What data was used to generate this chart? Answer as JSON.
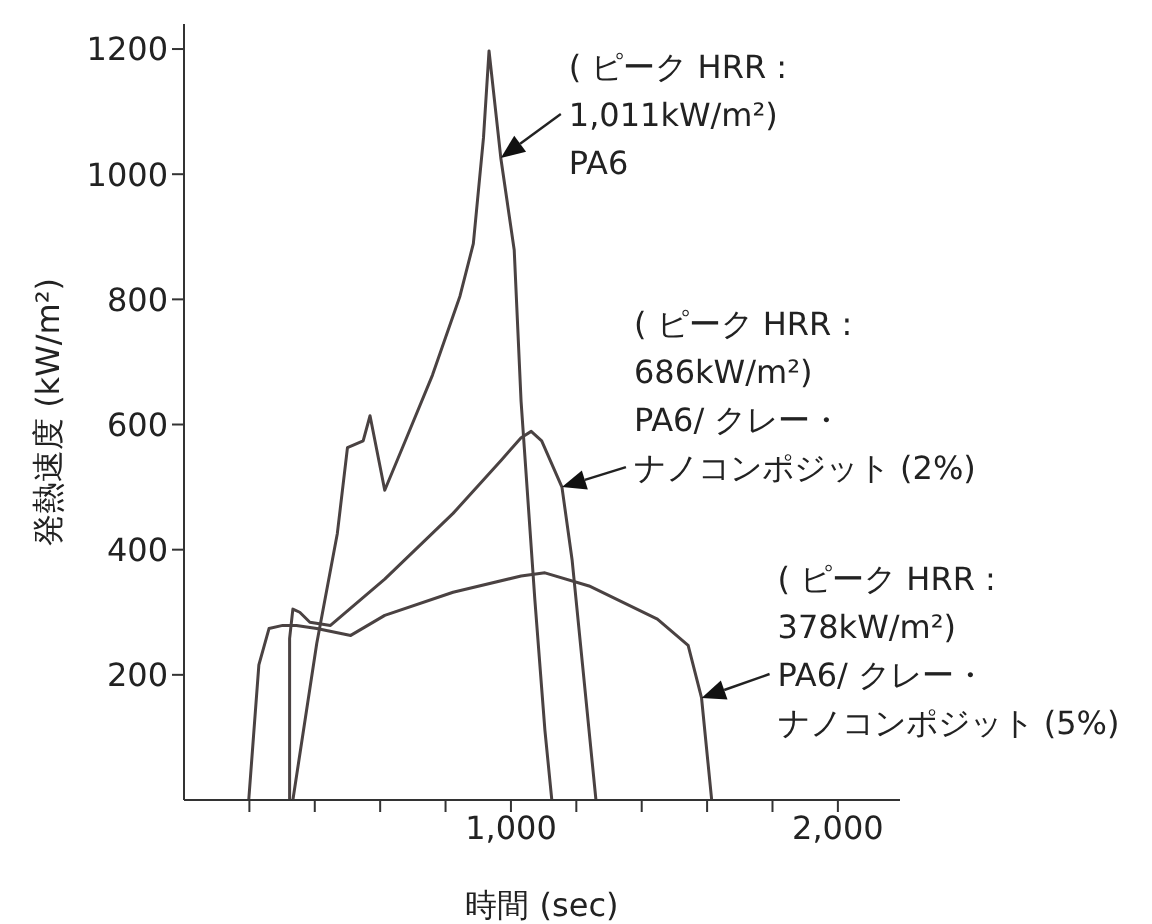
{
  "chart_data": {
    "type": "line",
    "xlabel": "時間 (sec)",
    "ylabel": "発熱速度 (kW/m²)",
    "xlim": [
      0,
      2190
    ],
    "ylim": [
      0,
      1240
    ],
    "xticks": [
      {
        "value": 200,
        "label": null
      },
      {
        "value": 400,
        "label": null
      },
      {
        "value": 600,
        "label": null
      },
      {
        "value": 800,
        "label": null
      },
      {
        "value": 1000,
        "label": "1,000"
      },
      {
        "value": 1200,
        "label": null
      },
      {
        "value": 1400,
        "label": null
      },
      {
        "value": 1600,
        "label": null
      },
      {
        "value": 1800,
        "label": null
      },
      {
        "value": 2000,
        "label": "2,000"
      }
    ],
    "yticks": [
      200,
      400,
      600,
      800,
      1000,
      1200
    ],
    "marker": "none",
    "series": [
      {
        "color": "#4a4242",
        "x": [
          333,
          406,
          469,
          500,
          548,
          569,
          614,
          677,
          760,
          844,
          885,
          916,
          933,
          969,
          1010,
          1031,
          1073,
          1104,
          1125
        ],
        "values": [
          0,
          250,
          426,
          563,
          574,
          614,
          495,
          574,
          679,
          805,
          889,
          1058,
          1197,
          1026,
          879,
          637,
          321,
          111,
          0
        ]
      },
      {
        "color": "#4a4242",
        "x": [
          323,
          323,
          333,
          354,
          385,
          448,
          614,
          823,
          969,
          1031,
          1062,
          1094,
          1156,
          1187,
          1219,
          1260
        ],
        "values": [
          0,
          258,
          305,
          300,
          284,
          279,
          353,
          458,
          542,
          579,
          589,
          574,
          500,
          384,
          216,
          0
        ]
      },
      {
        "color": "#4a4242",
        "x": [
          198,
          229,
          260,
          302,
          344,
          406,
          510,
          614,
          823,
          1031,
          1104,
          1239,
          1448,
          1542,
          1583,
          1614
        ],
        "values": [
          0,
          216,
          274,
          279,
          279,
          274,
          263,
          295,
          332,
          358,
          363,
          342,
          289,
          247,
          163,
          0
        ]
      }
    ],
    "annotations": [
      {
        "text": "( ピーク HRR :\n1,011kW/m²)\nPA6",
        "x": 969,
        "y": 1026
      },
      {
        "text": "( ピーク HRR :\n686kW/m²)\nPA6/ クレー・ナノコンポジット (2%)",
        "x": 1156,
        "y": 500
      },
      {
        "text": "( ピーク HRR :\n378kW/m²)\nPA6/ クレー・ナノコンポジット (5%)",
        "x": 1583,
        "y": 163
      }
    ]
  }
}
